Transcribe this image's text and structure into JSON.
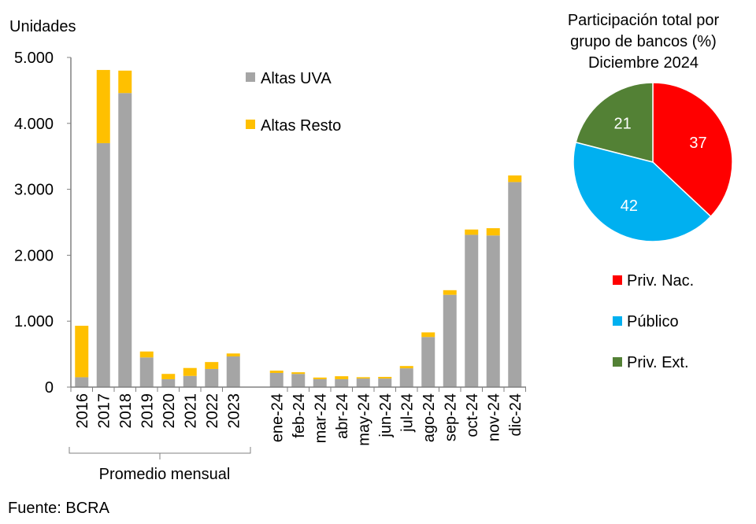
{
  "chart_data": [
    {
      "type": "bar",
      "stacked": true,
      "ylabel": "Unidades",
      "ylim": [
        0,
        5000
      ],
      "yticks": [
        "0",
        "1.000",
        "2.000",
        "3.000",
        "4.000",
        "5.000"
      ],
      "ytick_values": [
        0,
        1000,
        2000,
        3000,
        4000,
        5000
      ],
      "categories": [
        "2016",
        "2017",
        "2018",
        "2019",
        "2020",
        "2021",
        "2022",
        "2023",
        "",
        "ene-24",
        "feb-24",
        "mar-24",
        "abr-24",
        "may-24",
        "jun-24",
        "jul-24",
        "ago-24",
        "sep-24",
        "oct-24",
        "nov-24",
        "dic-24"
      ],
      "group_label": "Promedio mensual",
      "legend_position": "top-center",
      "series": [
        {
          "name": "Altas UVA",
          "color": "#a5a5a5",
          "values": [
            150,
            3700,
            4460,
            450,
            120,
            170,
            275,
            465,
            null,
            215,
            200,
            120,
            120,
            130,
            130,
            285,
            760,
            1400,
            2310,
            2300,
            3110
          ]
        },
        {
          "name": "Altas Resto",
          "color": "#ffc000",
          "values": [
            780,
            1110,
            340,
            90,
            80,
            120,
            105,
            45,
            null,
            35,
            25,
            25,
            45,
            20,
            25,
            35,
            70,
            70,
            80,
            110,
            100
          ]
        }
      ]
    },
    {
      "type": "pie",
      "title": [
        "Participación total por",
        "grupo de bancos (%)",
        "Diciembre 2024"
      ],
      "legend_position": "bottom",
      "slices": [
        {
          "name": "Priv. Nac.",
          "value": 37,
          "label": "37",
          "color": "#ff0000"
        },
        {
          "name": "Público",
          "value": 42,
          "label": "42",
          "color": "#00b0f0"
        },
        {
          "name": "Priv. Ext.",
          "value": 21,
          "label": "21",
          "color": "#538135"
        }
      ]
    }
  ],
  "source": "Fuente: BCRA"
}
